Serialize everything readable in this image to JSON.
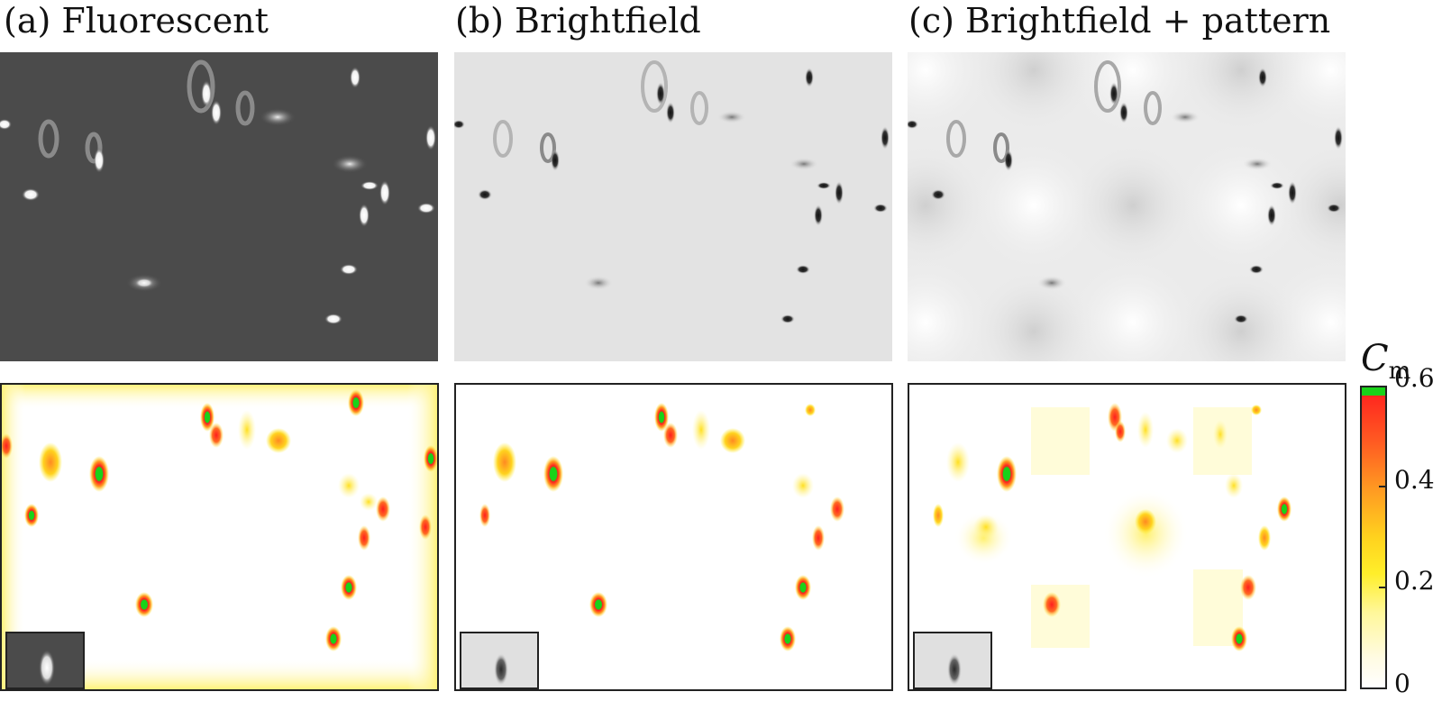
{
  "panels": {
    "a": {
      "title": "(a) Fluorescent"
    },
    "b": {
      "title": "(b) Brightfield"
    },
    "c": {
      "title": "(c) Brightfield + pattern"
    }
  },
  "colorbar": {
    "label_symbol": "C",
    "label_subscript": "m",
    "ticks": [
      "0.6",
      "0.4",
      "0.2",
      "0"
    ],
    "range": [
      0,
      0.6
    ],
    "colors": {
      "low": "#ffffff",
      "mid": "#ffee2a",
      "high": "#ff1e1e",
      "cap": "#19d219"
    }
  }
}
